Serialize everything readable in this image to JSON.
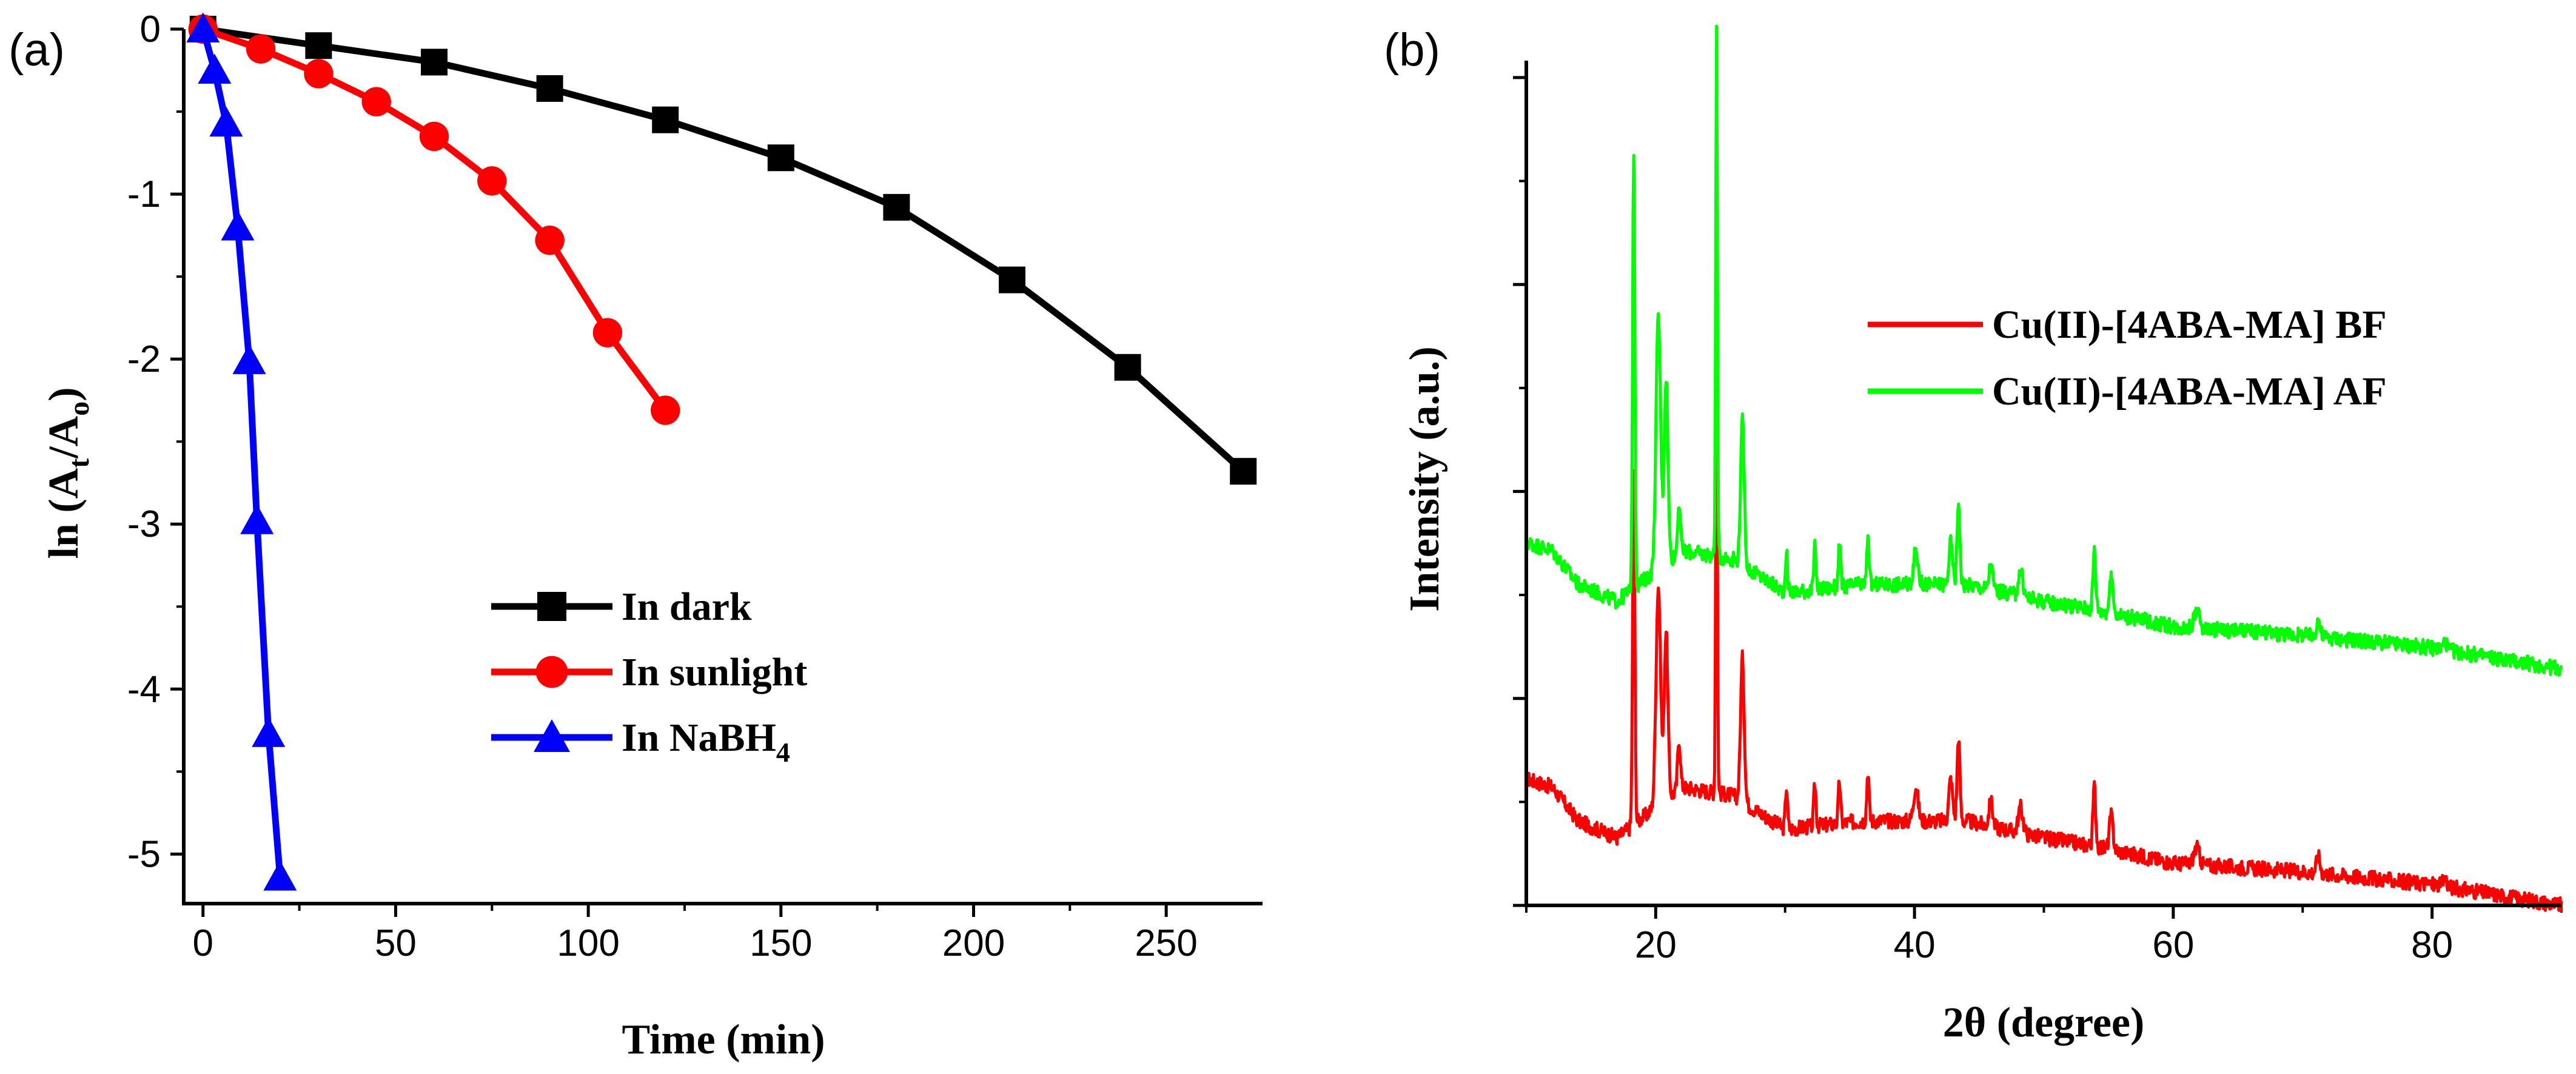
{
  "chart_data": [
    {
      "type": "line",
      "panel_label": "(a)",
      "xlabel": "Time (min)",
      "ylabel_prefix": "ln (A",
      "ylabel_sub1": "t",
      "ylabel_mid": "/A",
      "ylabel_sub2": "o",
      "ylabel_suffix": ")",
      "xlim": [
        -5,
        275
      ],
      "ylim": [
        -5.3,
        0
      ],
      "xticks": [
        0,
        50,
        100,
        150,
        200,
        250
      ],
      "yticks": [
        0,
        -1,
        -2,
        -3,
        -4,
        -5
      ],
      "legend_position": "bottom-center",
      "series": [
        {
          "name": "In dark",
          "name_sub": "",
          "color": "#000000",
          "marker": "square",
          "x": [
            0,
            30,
            60,
            90,
            120,
            150,
            180,
            210,
            240,
            270
          ],
          "y": [
            0,
            -0.1,
            -0.2,
            -0.36,
            -0.55,
            -0.78,
            -1.08,
            -1.52,
            -2.05,
            -2.68
          ]
        },
        {
          "name": "In sunlight",
          "name_sub": "",
          "color": "#ff0000",
          "marker": "circle",
          "x": [
            0,
            15,
            30,
            45,
            60,
            75,
            90,
            105,
            120
          ],
          "y": [
            0,
            -0.12,
            -0.27,
            -0.44,
            -0.65,
            -0.92,
            -1.28,
            -1.84,
            -2.31
          ]
        },
        {
          "name": "In NaBH",
          "name_sub": "4",
          "color": "#0000ff",
          "marker": "triangle",
          "x": [
            0,
            3,
            6,
            9,
            12,
            14,
            17,
            20
          ],
          "y": [
            0,
            -0.25,
            -0.57,
            -1.2,
            -2.01,
            -2.98,
            -4.27,
            -5.14
          ]
        }
      ]
    },
    {
      "type": "line",
      "panel_label": "(b)",
      "xlabel": "2θ (degree)",
      "ylabel": "Intensity (a.u.)",
      "xlim": [
        10,
        90
      ],
      "ylim": [
        0,
        1
      ],
      "xticks": [
        20,
        40,
        60,
        80
      ],
      "show_y_tick_labels": false,
      "legend_position": "top-right",
      "series": [
        {
          "name": "Cu(II)-[4ABA-MA] BF",
          "color": "#ff0000",
          "baseline": [
            [
              10,
              0.15
            ],
            [
              12,
              0.14
            ],
            [
              14,
              0.1
            ],
            [
              17,
              0.08
            ],
            [
              22,
              0.14
            ],
            [
              26,
              0.13
            ],
            [
              30,
              0.09
            ],
            [
              36,
              0.1
            ],
            [
              40,
              0.1
            ],
            [
              44,
              0.1
            ],
            [
              50,
              0.08
            ],
            [
              54,
              0.07
            ],
            [
              60,
              0.05
            ],
            [
              70,
              0.04
            ],
            [
              80,
              0.025
            ],
            [
              90,
              0.0
            ]
          ],
          "peaks": [
            [
              18.3,
              0.42,
              0.12
            ],
            [
              20.2,
              0.26,
              0.25
            ],
            [
              20.8,
              0.2,
              0.2
            ],
            [
              21.8,
              0.06,
              0.15
            ],
            [
              24.7,
              0.52,
              0.09
            ],
            [
              26.7,
              0.17,
              0.2
            ],
            [
              30.1,
              0.05,
              0.12
            ],
            [
              32.3,
              0.05,
              0.12
            ],
            [
              34.2,
              0.05,
              0.12
            ],
            [
              36.4,
              0.06,
              0.12
            ],
            [
              40.1,
              0.04,
              0.25
            ],
            [
              42.8,
              0.05,
              0.2
            ],
            [
              43.4,
              0.1,
              0.15
            ],
            [
              45.9,
              0.03,
              0.2
            ],
            [
              48.2,
              0.03,
              0.25
            ],
            [
              53.9,
              0.07,
              0.15
            ],
            [
              55.2,
              0.04,
              0.2
            ],
            [
              61.8,
              0.02,
              0.3
            ],
            [
              71.2,
              0.02,
              0.2
            ],
            [
              81.0,
              0.01,
              0.2
            ]
          ]
        },
        {
          "name": "Cu(II)-[4ABA-MA] AF",
          "color": "#00ff00",
          "offset": 0.28,
          "baseline": [
            [
              10,
              0.15
            ],
            [
              12,
              0.14
            ],
            [
              14,
              0.1
            ],
            [
              17,
              0.08
            ],
            [
              22,
              0.14
            ],
            [
              26,
              0.13
            ],
            [
              30,
              0.09
            ],
            [
              36,
              0.1
            ],
            [
              40,
              0.1
            ],
            [
              44,
              0.1
            ],
            [
              50,
              0.08
            ],
            [
              54,
              0.07
            ],
            [
              60,
              0.05
            ],
            [
              70,
              0.04
            ],
            [
              80,
              0.025
            ],
            [
              90,
              0.0
            ]
          ],
          "peaks": [
            [
              18.3,
              0.52,
              0.12
            ],
            [
              20.2,
              0.3,
              0.25
            ],
            [
              20.8,
              0.22,
              0.2
            ],
            [
              21.8,
              0.06,
              0.15
            ],
            [
              24.7,
              0.62,
              0.09
            ],
            [
              26.7,
              0.17,
              0.2
            ],
            [
              30.1,
              0.05,
              0.12
            ],
            [
              32.3,
              0.05,
              0.12
            ],
            [
              34.2,
              0.05,
              0.12
            ],
            [
              36.4,
              0.06,
              0.12
            ],
            [
              40.1,
              0.04,
              0.25
            ],
            [
              42.8,
              0.05,
              0.2
            ],
            [
              43.4,
              0.1,
              0.15
            ],
            [
              45.9,
              0.03,
              0.2
            ],
            [
              48.2,
              0.03,
              0.25
            ],
            [
              53.9,
              0.07,
              0.15
            ],
            [
              55.2,
              0.04,
              0.2
            ],
            [
              61.8,
              0.02,
              0.3
            ],
            [
              71.2,
              0.02,
              0.2
            ],
            [
              81.0,
              0.01,
              0.2
            ]
          ]
        }
      ]
    }
  ]
}
